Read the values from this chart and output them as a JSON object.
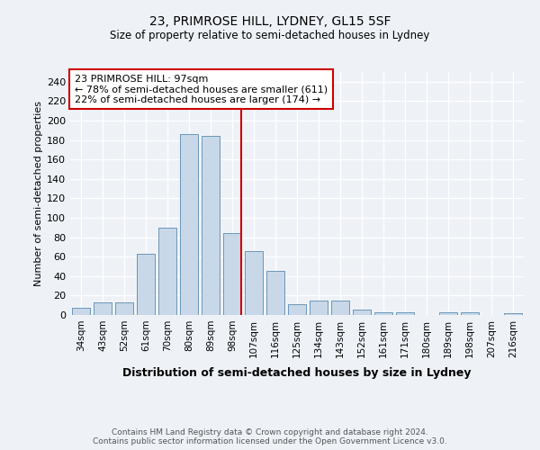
{
  "title": "23, PRIMROSE HILL, LYDNEY, GL15 5SF",
  "subtitle": "Size of property relative to semi-detached houses in Lydney",
  "xlabel": "Distribution of semi-detached houses by size in Lydney",
  "ylabel": "Number of semi-detached properties",
  "categories": [
    "34sqm",
    "43sqm",
    "52sqm",
    "61sqm",
    "70sqm",
    "80sqm",
    "89sqm",
    "98sqm",
    "107sqm",
    "116sqm",
    "125sqm",
    "134sqm",
    "143sqm",
    "152sqm",
    "161sqm",
    "171sqm",
    "180sqm",
    "189sqm",
    "198sqm",
    "207sqm",
    "216sqm"
  ],
  "values": [
    7,
    13,
    13,
    63,
    90,
    186,
    184,
    84,
    66,
    45,
    11,
    15,
    15,
    6,
    3,
    3,
    0,
    3,
    3,
    0,
    2
  ],
  "bar_color": "#c8d8e8",
  "bar_edge_color": "#5a8ab0",
  "vline_index": 7,
  "vline_color": "#cc0000",
  "annotation_title": "23 PRIMROSE HILL: 97sqm",
  "annotation_line1": "← 78% of semi-detached houses are smaller (611)",
  "annotation_line2": "22% of semi-detached houses are larger (174) →",
  "annotation_box_color": "#ffffff",
  "annotation_box_edge": "#cc0000",
  "ylim": [
    0,
    250
  ],
  "yticks": [
    0,
    20,
    40,
    60,
    80,
    100,
    120,
    140,
    160,
    180,
    200,
    220,
    240
  ],
  "footer": "Contains HM Land Registry data © Crown copyright and database right 2024.\nContains public sector information licensed under the Open Government Licence v3.0.",
  "background_color": "#eef2f7",
  "grid_color": "#ffffff"
}
